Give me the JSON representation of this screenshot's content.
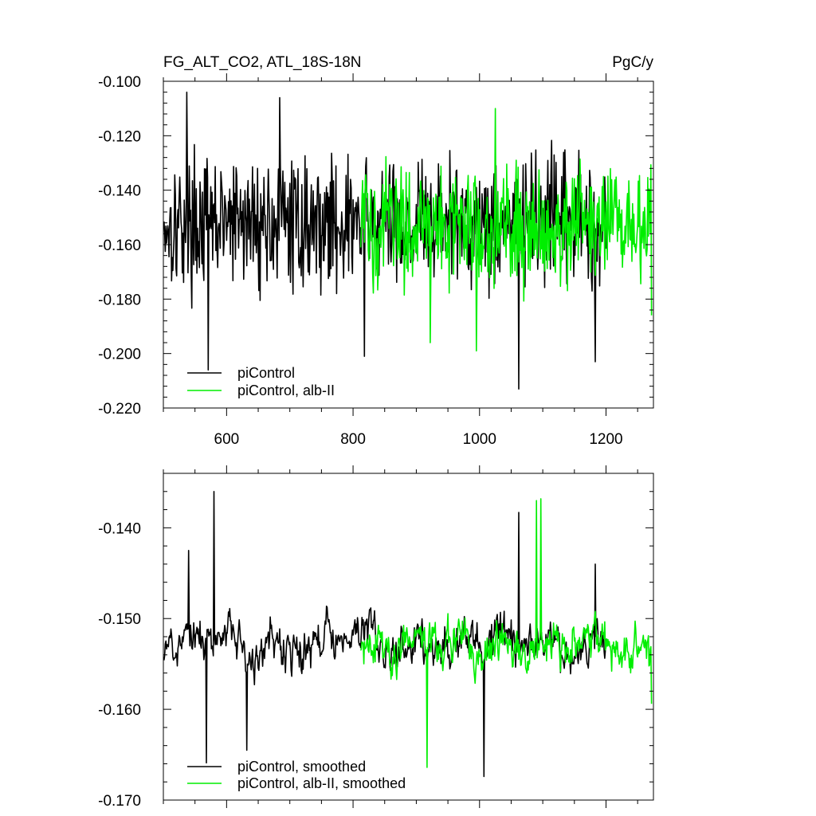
{
  "chart_data": [
    {
      "type": "line",
      "title_left": "FG_ALT_CO2, ATL_18S-18N",
      "title_right": "PgC/y",
      "xlim": [
        500,
        1275
      ],
      "ylim": [
        -0.22,
        -0.1
      ],
      "x_ticks": [
        600,
        800,
        1000,
        1200
      ],
      "x_tick_labels": [
        "600",
        "800",
        "1000",
        "1200"
      ],
      "y_ticks": [
        -0.22,
        -0.2,
        -0.18,
        -0.16,
        -0.14,
        -0.12,
        -0.1
      ],
      "y_tick_labels": [
        "-0.220",
        "-0.200",
        "-0.180",
        "-0.160",
        "-0.140",
        "-0.120",
        "-0.100"
      ],
      "legend_position": "bottom-left",
      "series": [
        {
          "name": "piControl",
          "color": "#000000",
          "x_start": 501,
          "x_end": 1200,
          "mean": -0.152,
          "amplitude": 0.026,
          "key_points": [
            [
              537,
              -0.104
            ],
            [
              571,
              -0.206
            ],
            [
              684,
              -0.106
            ],
            [
              818,
              -0.201
            ],
            [
              1062,
              -0.213
            ],
            [
              1183,
              -0.203
            ]
          ]
        },
        {
          "name": "piControl, alb-II",
          "color": "#00ee00",
          "x_start": 812,
          "x_end": 1272,
          "mean": -0.153,
          "amplitude": 0.024,
          "key_points": [
            [
              1025,
              -0.11
            ],
            [
              995,
              -0.199
            ],
            [
              922,
              -0.196
            ],
            [
              1272,
              -0.186
            ]
          ]
        }
      ]
    },
    {
      "type": "line",
      "xlim": [
        500,
        1275
      ],
      "ylim": [
        -0.17,
        -0.134
      ],
      "x_ticks": [
        600,
        800,
        1000,
        1200
      ],
      "y_ticks": [
        -0.17,
        -0.16,
        -0.15,
        -0.14
      ],
      "y_tick_labels": [
        "-0.170",
        "-0.160",
        "-0.150",
        "-0.140"
      ],
      "legend_position": "bottom-left",
      "series": [
        {
          "name": "piControl, smoothed",
          "color": "#000000",
          "x_start": 501,
          "x_end": 1200,
          "mean": -0.1528,
          "amplitude": 0.0055,
          "key_points": [
            [
              540,
              -0.1425
            ],
            [
              568,
              -0.1659
            ],
            [
              580,
              -0.136
            ],
            [
              632,
              -0.1645
            ],
            [
              1007,
              -0.1674
            ],
            [
              1062,
              -0.1383
            ],
            [
              1183,
              -0.144
            ]
          ]
        },
        {
          "name": "piControl, alb-II, smoothed",
          "color": "#00ee00",
          "x_start": 812,
          "x_end": 1272,
          "mean": -0.153,
          "amplitude": 0.0055,
          "key_points": [
            [
              917,
              -0.1664
            ],
            [
              1097,
              -0.1368
            ],
            [
              1090,
              -0.137
            ],
            [
              1272,
              -0.1594
            ]
          ]
        }
      ]
    }
  ]
}
